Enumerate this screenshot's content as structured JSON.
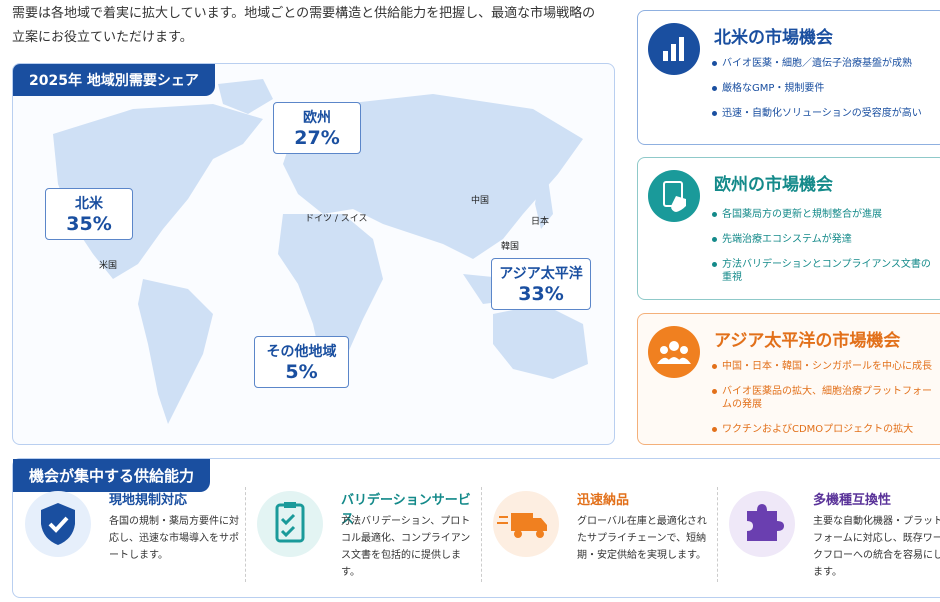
{
  "intro": "需要は各地域で着実に拡大しています。地域ごとの需要構造と供給能力を把握し、最適な市場戦略の立案にお役立ていただけます。",
  "map": {
    "title": "2025年 地域別需要シェア",
    "regions": [
      {
        "name": "北米",
        "share": "35%"
      },
      {
        "name": "欧州",
        "share": "27%"
      },
      {
        "name": "アジア太平洋",
        "share": "33%"
      },
      {
        "name": "その他地域",
        "share": "5%"
      }
    ],
    "places": [
      "米国",
      "ドイツ / スイス",
      "中国",
      "日本",
      "韓国"
    ]
  },
  "opportunities": [
    {
      "title": "北米の市場機会",
      "bullets": [
        "バイオ医薬・細胞／遺伝子治療基盤が成熟",
        "厳格なGMP・規制要件",
        "迅速・自動化ソリューションの受容度が高い"
      ]
    },
    {
      "title": "欧州の市場機会",
      "bullets": [
        "各国薬局方の更新と規制整合が進展",
        "先端治療エコシステムが発達",
        "方法バリデーションとコンプライアンス文書の重視"
      ]
    },
    {
      "title": "アジア太平洋の市場機会",
      "bullets": [
        "中国・日本・韓国・シンガポールを中心に成長",
        "バイオ医薬品の拡大、細胞治療プラットフォームの発展",
        "ワクチンおよびCDMOプロジェクトの拡大"
      ]
    }
  ],
  "capabilities": {
    "title": "機会が集中する供給能力",
    "items": [
      {
        "title": "現地規制対応",
        "text": "各国の規制・薬局方要件に対応し、迅速な市場導入をサポートします。"
      },
      {
        "title": "バリデーションサービス",
        "text": "方法バリデーション、プロトコル最適化、コンプライアンス文書を包括的に提供します。"
      },
      {
        "title": "迅速納品",
        "text": "グローバル在庫と最適化されたサプライチェーンで、短納期・安定供給を実現します。"
      },
      {
        "title": "多機種互換性",
        "text": "主要な自動化機器・プラットフォームに対応し、既存ワークフローへの統合を容易にします。"
      }
    ]
  }
}
